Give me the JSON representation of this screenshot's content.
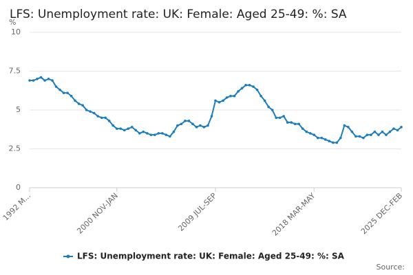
{
  "chart_data": {
    "type": "line",
    "title": "LFS: Unemployment rate: UK: Female: Aged 25-49: %: SA",
    "y_unit": "%",
    "source": "Source:",
    "categories": [
      "1992 M...",
      null,
      null,
      null,
      null,
      null,
      null,
      null,
      null,
      null,
      null,
      null,
      null,
      null,
      null,
      null,
      null,
      null,
      null,
      null,
      null,
      null,
      null,
      "2000 NOV-JAN",
      null,
      null,
      null,
      null,
      null,
      null,
      null,
      null,
      null,
      null,
      null,
      null,
      null,
      null,
      null,
      null,
      null,
      null,
      null,
      null,
      null,
      null,
      null,
      null,
      null,
      "2009 JUL-SEP",
      null,
      null,
      null,
      null,
      null,
      null,
      null,
      null,
      null,
      null,
      null,
      null,
      null,
      null,
      null,
      null,
      null,
      null,
      null,
      null,
      null,
      null,
      null,
      null,
      null,
      "2018 MAR-MAY",
      null,
      null,
      null,
      null,
      null,
      null,
      null,
      null,
      null,
      null,
      null,
      null,
      null,
      null,
      null,
      null,
      null,
      null,
      null,
      null,
      null,
      null,
      "2025 DEC-FEB"
    ],
    "series": [
      {
        "name": "LFS: Unemployment rate: UK: Female: Aged 25-49: %: SA",
        "color": "#1a7dbd",
        "values": [
          6.9,
          6.9,
          7.0,
          7.1,
          6.9,
          7.0,
          6.9,
          6.5,
          6.3,
          6.1,
          6.1,
          5.9,
          5.6,
          5.4,
          5.3,
          5.0,
          4.9,
          4.8,
          4.6,
          4.5,
          4.5,
          4.3,
          4.0,
          3.8,
          3.8,
          3.7,
          3.8,
          3.9,
          3.7,
          3.5,
          3.6,
          3.5,
          3.4,
          3.4,
          3.5,
          3.5,
          3.4,
          3.3,
          3.6,
          4.0,
          4.1,
          4.3,
          4.3,
          4.1,
          3.9,
          4.0,
          3.9,
          4.0,
          4.6,
          5.6,
          5.5,
          5.6,
          5.8,
          5.9,
          5.9,
          6.2,
          6.4,
          6.6,
          6.6,
          6.5,
          6.3,
          5.9,
          5.6,
          5.2,
          5.0,
          4.5,
          4.5,
          4.6,
          4.2,
          4.2,
          4.1,
          4.1,
          3.8,
          3.6,
          3.5,
          3.4,
          3.2,
          3.2,
          3.1,
          3.0,
          2.9,
          2.9,
          3.2,
          4.0,
          3.9,
          3.6,
          3.3,
          3.3,
          3.2,
          3.4,
          3.4,
          3.6,
          3.4,
          3.6,
          3.4,
          3.6,
          3.8,
          3.7,
          3.9
        ]
      }
    ],
    "ylim": [
      0,
      10
    ],
    "yticks": [
      0,
      2.5,
      5,
      7.5,
      10
    ],
    "grid": true
  }
}
